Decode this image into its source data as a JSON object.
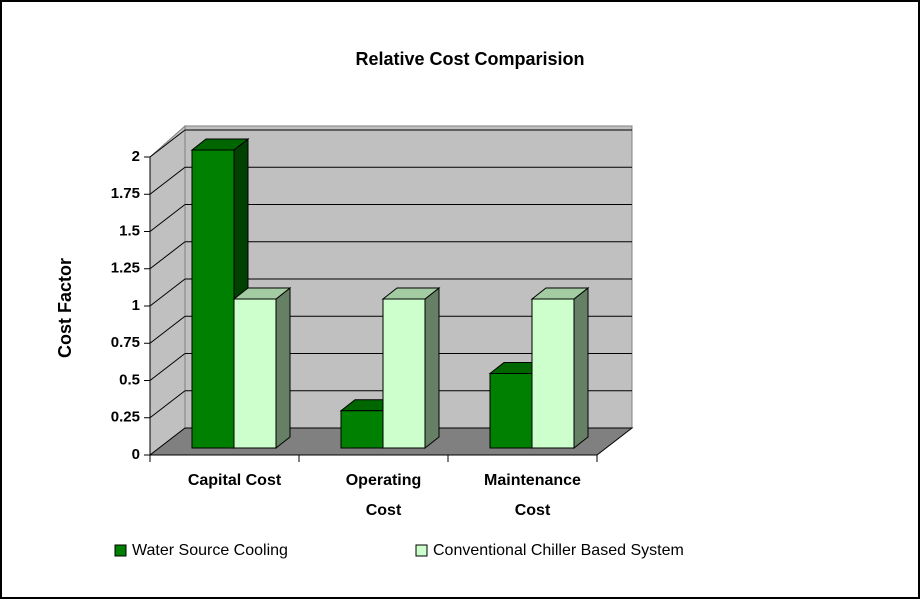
{
  "chart_data": {
    "type": "bar3d",
    "title": "Relative Cost Comparision",
    "y_label": "Cost Factor",
    "categories": [
      "Capital Cost",
      "Operating Cost",
      "Maintenance Cost"
    ],
    "series": [
      {
        "name": "Water Source Cooling",
        "color": "#008000",
        "values": [
          2,
          0.25,
          0.5
        ]
      },
      {
        "name": "Conventional Chiller Based System",
        "color": "#ccffcc",
        "values": [
          1,
          1,
          1
        ]
      }
    ],
    "ylim": [
      0,
      2
    ],
    "yticks": [
      0,
      0.25,
      0.5,
      0.75,
      1,
      1.25,
      1.5,
      1.75,
      2
    ],
    "grid": true
  }
}
